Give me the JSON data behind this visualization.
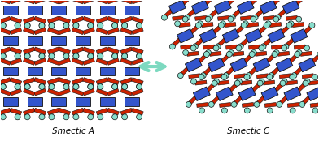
{
  "figure_width": 3.92,
  "figure_height": 1.74,
  "dpi": 100,
  "bg_color": "#ffffff",
  "label_smectic_a": "Smectic A",
  "label_smectic_c": "Smectic C",
  "label_fontsize": 7.5,
  "arrow_color": "#7dd9c0",
  "blue_color": "#3355cc",
  "red_color": "#cc2200",
  "cyan_color": "#88ddcc",
  "outline_color": "#111111"
}
